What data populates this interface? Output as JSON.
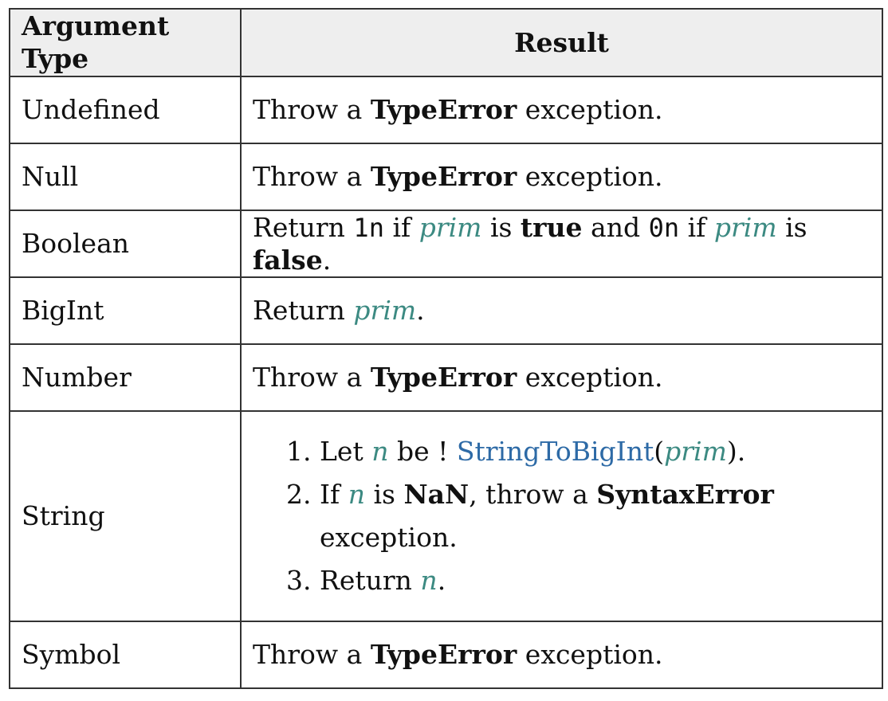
{
  "table": {
    "header": {
      "col1": "Argument Type",
      "col2": "Result"
    },
    "rows": {
      "undefined": {
        "type": "Undefined",
        "pre": "Throw a ",
        "error": "TypeError",
        "post": " exception."
      },
      "null": {
        "type": "Null",
        "pre": "Throw a ",
        "error": "TypeError",
        "post": " exception."
      },
      "boolean": {
        "type": "Boolean",
        "return_word": "Return ",
        "one_n": "1n",
        "if1": " if ",
        "prim1": "prim",
        "is1": " is ",
        "true_kw": "true",
        "and_text": " and ",
        "zero_n": "0n",
        "if2": " if ",
        "prim2": "prim",
        "is2": " is ",
        "false_kw": "false",
        "dot": "."
      },
      "bigint": {
        "type": "BigInt",
        "return_word": "Return ",
        "prim": "prim",
        "dot": "."
      },
      "number": {
        "type": "Number",
        "pre": "Throw a ",
        "error": "TypeError",
        "post": " exception."
      },
      "string": {
        "type": "String",
        "step1": {
          "let": "Let ",
          "n": "n",
          "be": " be ! ",
          "func": "StringToBigInt",
          "open": "(",
          "prim": "prim",
          "close": ")."
        },
        "step2": {
          "if": "If ",
          "n": "n",
          "is": " is ",
          "nan": "NaN",
          "throw": ", throw a ",
          "error": "SyntaxError",
          "post": " exception."
        },
        "step3": {
          "return_word": "Return ",
          "n": "n",
          "dot": "."
        }
      },
      "symbol": {
        "type": "Symbol",
        "pre": "Throw a ",
        "error": "TypeError",
        "post": " exception."
      }
    }
  }
}
